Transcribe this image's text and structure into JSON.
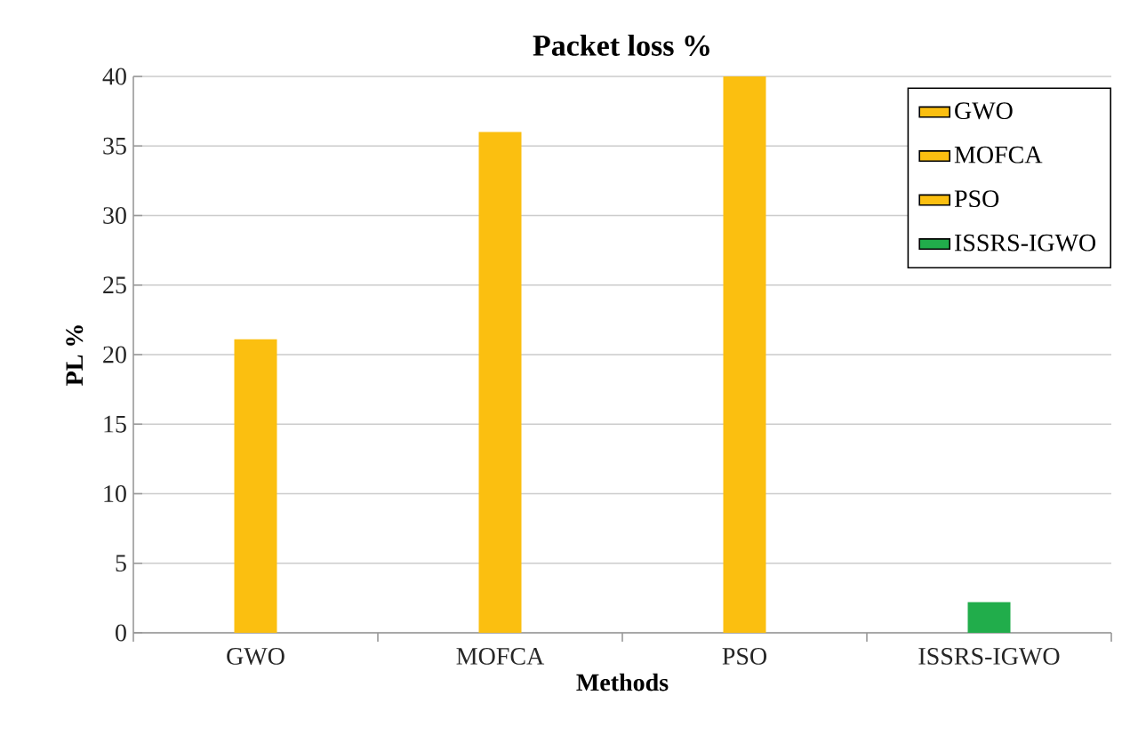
{
  "chart_data": {
    "type": "bar",
    "title": "Packet loss %",
    "xlabel": "Methods",
    "ylabel": "PL %",
    "categories": [
      "GWO",
      "MOFCA",
      "PSO",
      "ISSRS-IGWO"
    ],
    "series": [
      {
        "name": "GWO",
        "color": "#fbbf10",
        "values": [
          21.1,
          null,
          null,
          null
        ]
      },
      {
        "name": "MOFCA",
        "color": "#fbbf10",
        "values": [
          null,
          36,
          null,
          null
        ]
      },
      {
        "name": "PSO",
        "color": "#fbbf10",
        "values": [
          null,
          null,
          40,
          null
        ]
      },
      {
        "name": "ISSRS-IGWO",
        "color": "#21ad4b",
        "values": [
          null,
          null,
          null,
          2.2
        ]
      }
    ],
    "ylim": [
      0,
      40
    ],
    "yticks": [
      0,
      5,
      10,
      15,
      20,
      25,
      30,
      35,
      40
    ],
    "grid": "y",
    "legend": "top right"
  }
}
